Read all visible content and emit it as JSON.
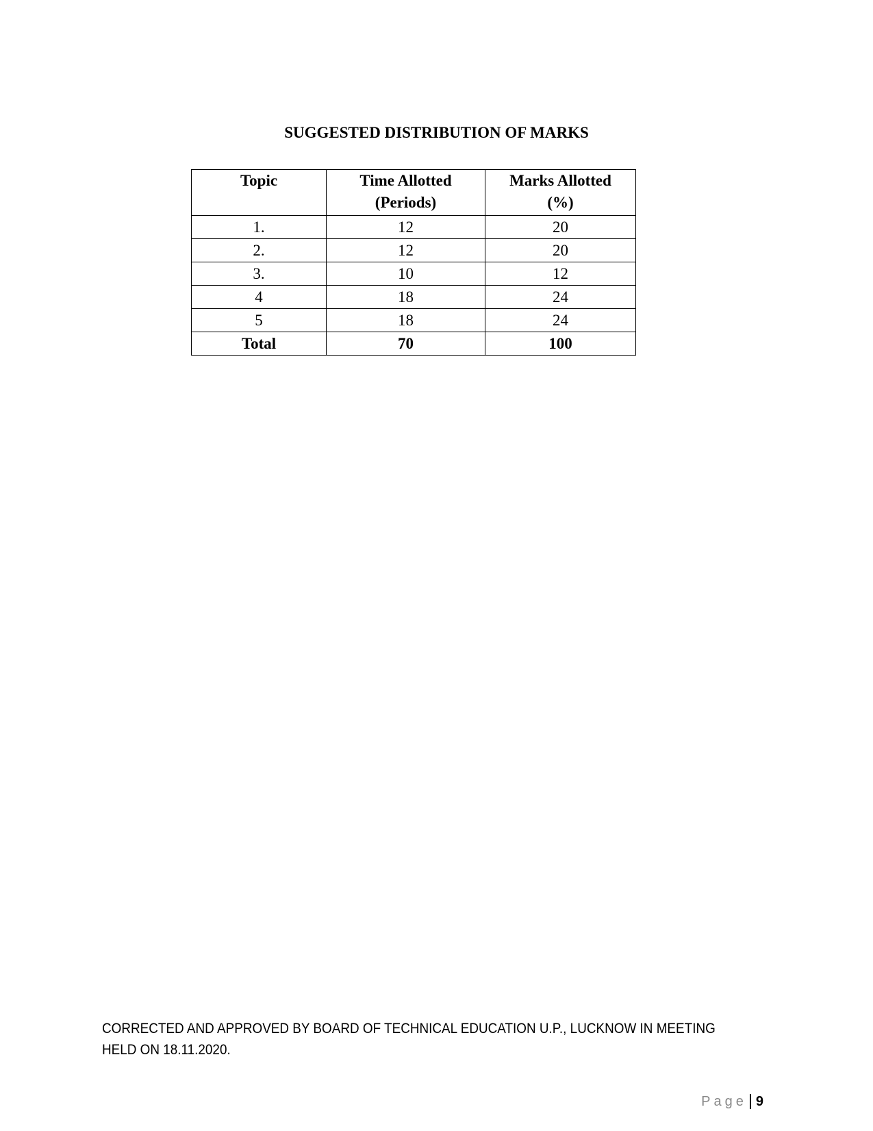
{
  "title": "SUGGESTED DISTRIBUTION OF MARKS",
  "table": {
    "headers": [
      {
        "line1": "Topic",
        "line2": ""
      },
      {
        "line1": "Time Allotted",
        "line2": "(Periods)"
      },
      {
        "line1": "Marks Allotted",
        "line2": "(%)"
      }
    ],
    "rows": [
      [
        "1.",
        "12",
        "20"
      ],
      [
        "2.",
        "12",
        "20"
      ],
      [
        "3.",
        "10",
        "12"
      ],
      [
        "4",
        "18",
        "24"
      ],
      [
        "5",
        "18",
        "24"
      ]
    ],
    "total": [
      "Total",
      "70",
      "100"
    ]
  },
  "footer": {
    "line1": "CORRECTED AND APPROVED BY BOARD OF TECHNICAL EDUCATION U.P., LUCKNOW IN MEETING",
    "line2": "HELD ON  18.11.2020."
  },
  "page": {
    "label": "Page",
    "number": "9"
  }
}
